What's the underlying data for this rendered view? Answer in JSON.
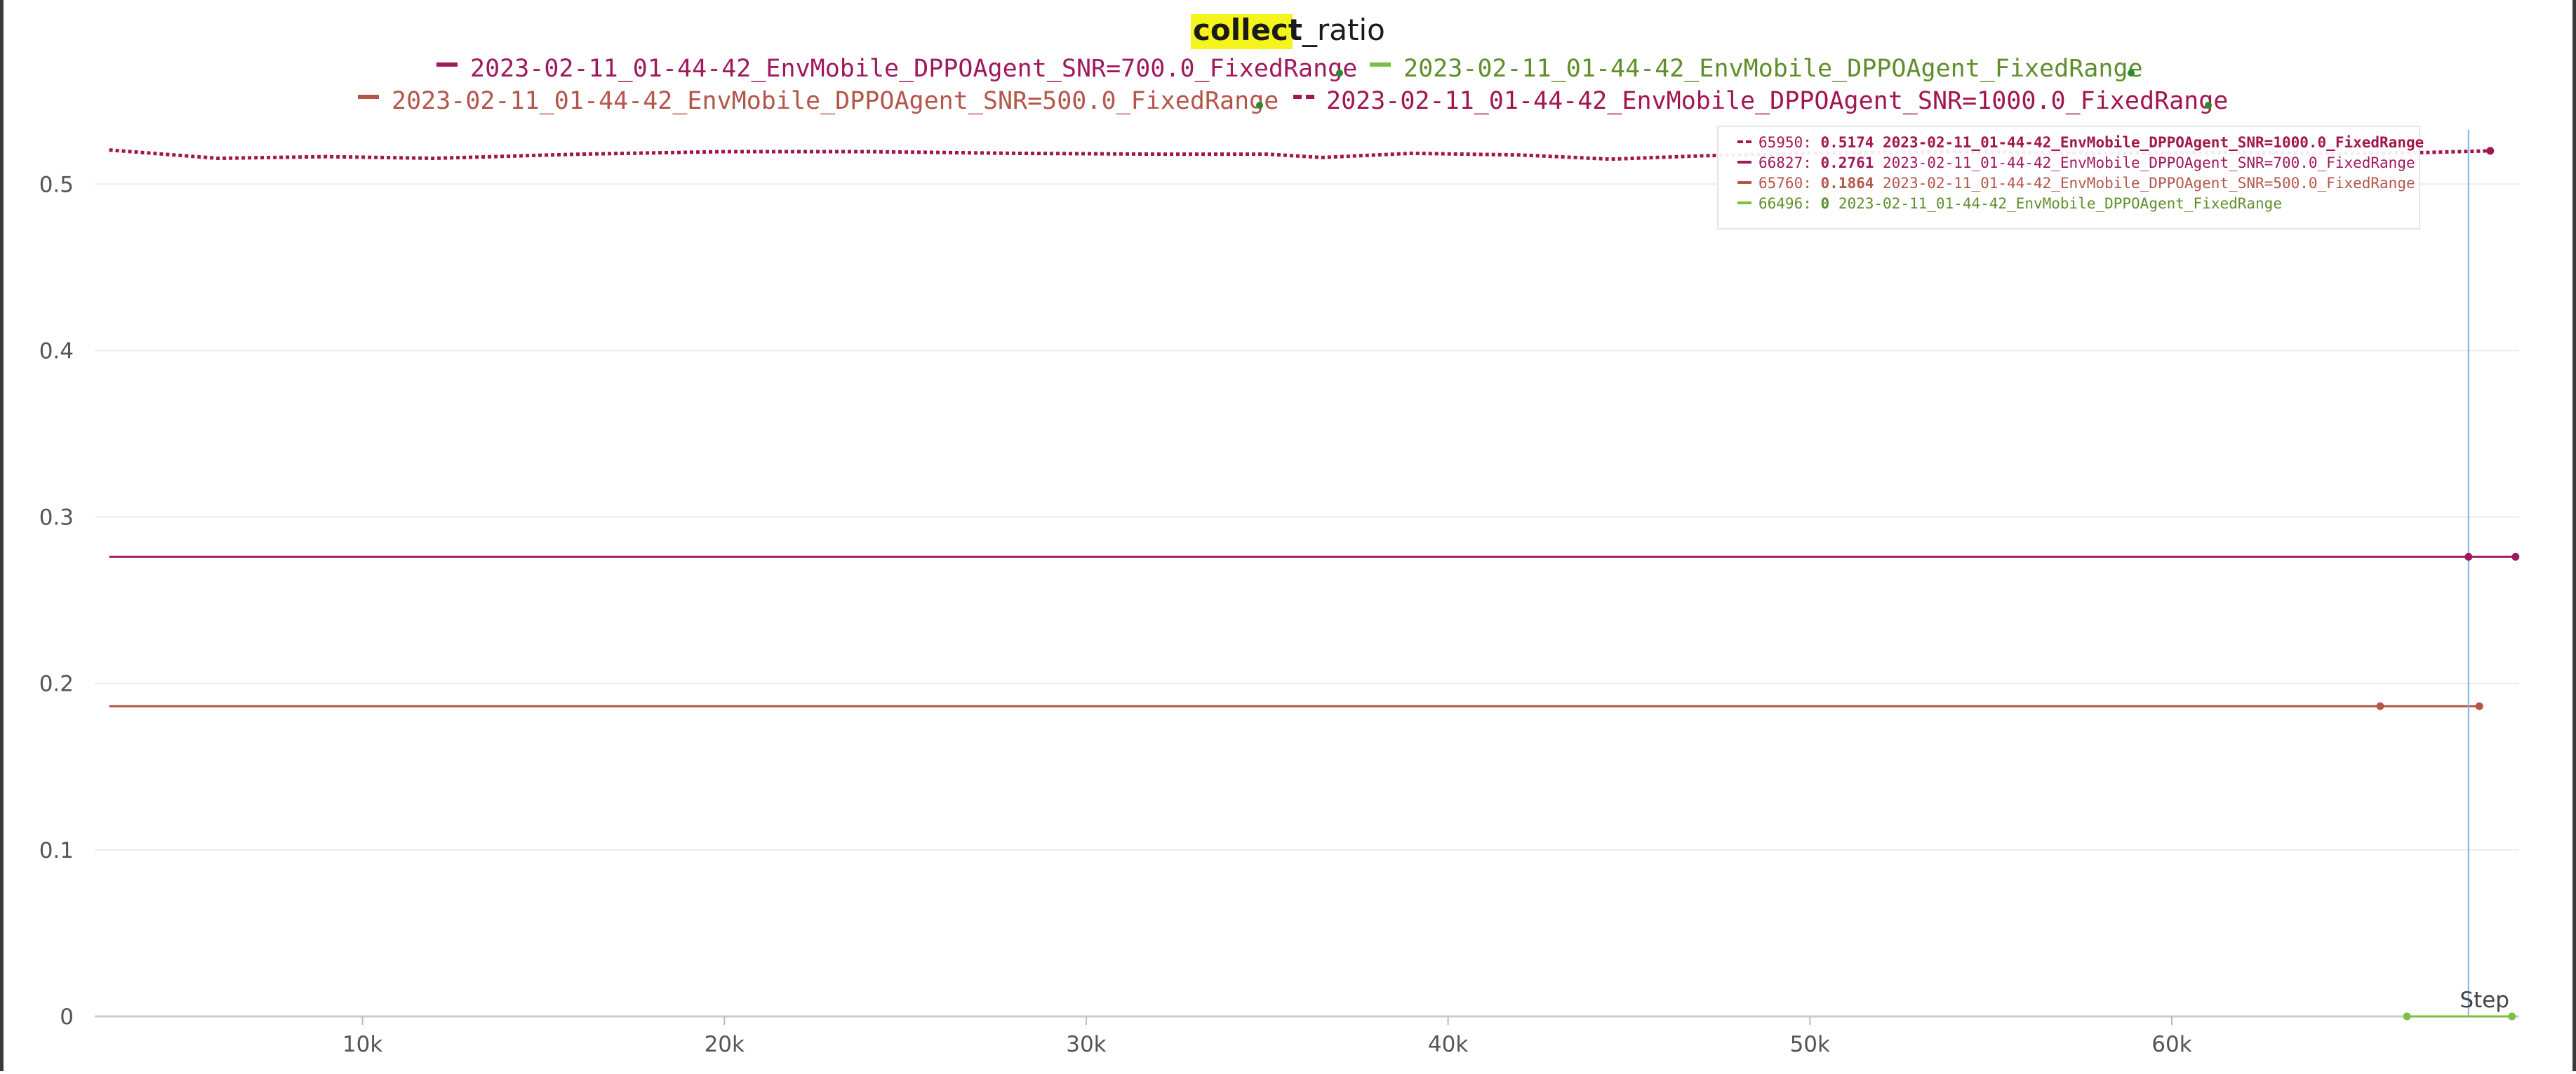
{
  "chart_data": {
    "type": "line",
    "title": {
      "highlight": "collect",
      "rest": "_ratio"
    },
    "xlabel": "Step",
    "ylabel": "",
    "xlim": [
      2600,
      69600
    ],
    "ylim": [
      0,
      0.56
    ],
    "x_ticks": [
      {
        "value": 10000,
        "label": "10k"
      },
      {
        "value": 20000,
        "label": "20k"
      },
      {
        "value": 30000,
        "label": "30k"
      },
      {
        "value": 40000,
        "label": "40k"
      },
      {
        "value": 50000,
        "label": "50k"
      },
      {
        "value": 60000,
        "label": "60k"
      }
    ],
    "y_ticks": [
      {
        "value": 0,
        "label": "0"
      },
      {
        "value": 0.1,
        "label": "0.1"
      },
      {
        "value": 0.2,
        "label": "0.2"
      },
      {
        "value": 0.3,
        "label": "0.3"
      },
      {
        "value": 0.4,
        "label": "0.4"
      },
      {
        "value": 0.5,
        "label": "0.5"
      }
    ],
    "grid": true,
    "legend_placement": "top-center",
    "hover_step": 68200,
    "series": [
      {
        "name": "2023-02-11_01-44-42_EnvMobile_DPPOAgent_SNR=700.0_FixedRange",
        "color": "#a0195c",
        "dash": "solid",
        "x": [
          3000,
          69500
        ],
        "y": [
          0.2761,
          0.2761
        ],
        "end_points": [
          68200,
          69500
        ],
        "tooltip_step": "66827",
        "tooltip_value": "0.2761"
      },
      {
        "name": "2023-02-11_01-44-42_EnvMobile_DPPOAgent_FixedRange",
        "color": "#7bc043",
        "text_color": "#5f8f2c",
        "dash": "solid",
        "x": [
          66400,
          69400
        ],
        "y": [
          0,
          0
        ],
        "end_points": [
          66500,
          69400
        ],
        "tooltip_step": "66496",
        "tooltip_value": "0"
      },
      {
        "name": "2023-02-11_01-44-42_EnvMobile_DPPOAgent_SNR=500.0_FixedRange",
        "color": "#b5564a",
        "dash": "solid",
        "x": [
          3000,
          68500
        ],
        "y": [
          0.1864,
          0.1864
        ],
        "end_points": [
          65760,
          68500
        ],
        "tooltip_step": "65760",
        "tooltip_value": "0.1864"
      },
      {
        "name": "2023-02-11_01-44-42_EnvMobile_DPPOAgent_SNR=1000.0_FixedRange",
        "color": "#a3164d",
        "dash": "dashed",
        "x": [
          3000,
          6000,
          9000,
          12000,
          16000,
          20000,
          24000,
          28000,
          32000,
          35000,
          36500,
          39000,
          42000,
          44500,
          47000,
          50000,
          54000,
          58000,
          62000,
          65000,
          67000,
          68800
        ],
        "y": [
          0.5205,
          0.5155,
          0.5165,
          0.5155,
          0.518,
          0.5195,
          0.5195,
          0.5185,
          0.518,
          0.518,
          0.516,
          0.5185,
          0.5175,
          0.515,
          0.517,
          0.5185,
          0.5195,
          0.5185,
          0.519,
          0.5185,
          0.519,
          0.52
        ],
        "end_points": [
          68800
        ],
        "tooltip_step": "65950",
        "tooltip_value": "0.5174"
      }
    ],
    "legend_order": [
      1,
      2,
      3,
      4
    ],
    "tooltip_order": [
      3,
      0,
      2,
      1
    ]
  }
}
